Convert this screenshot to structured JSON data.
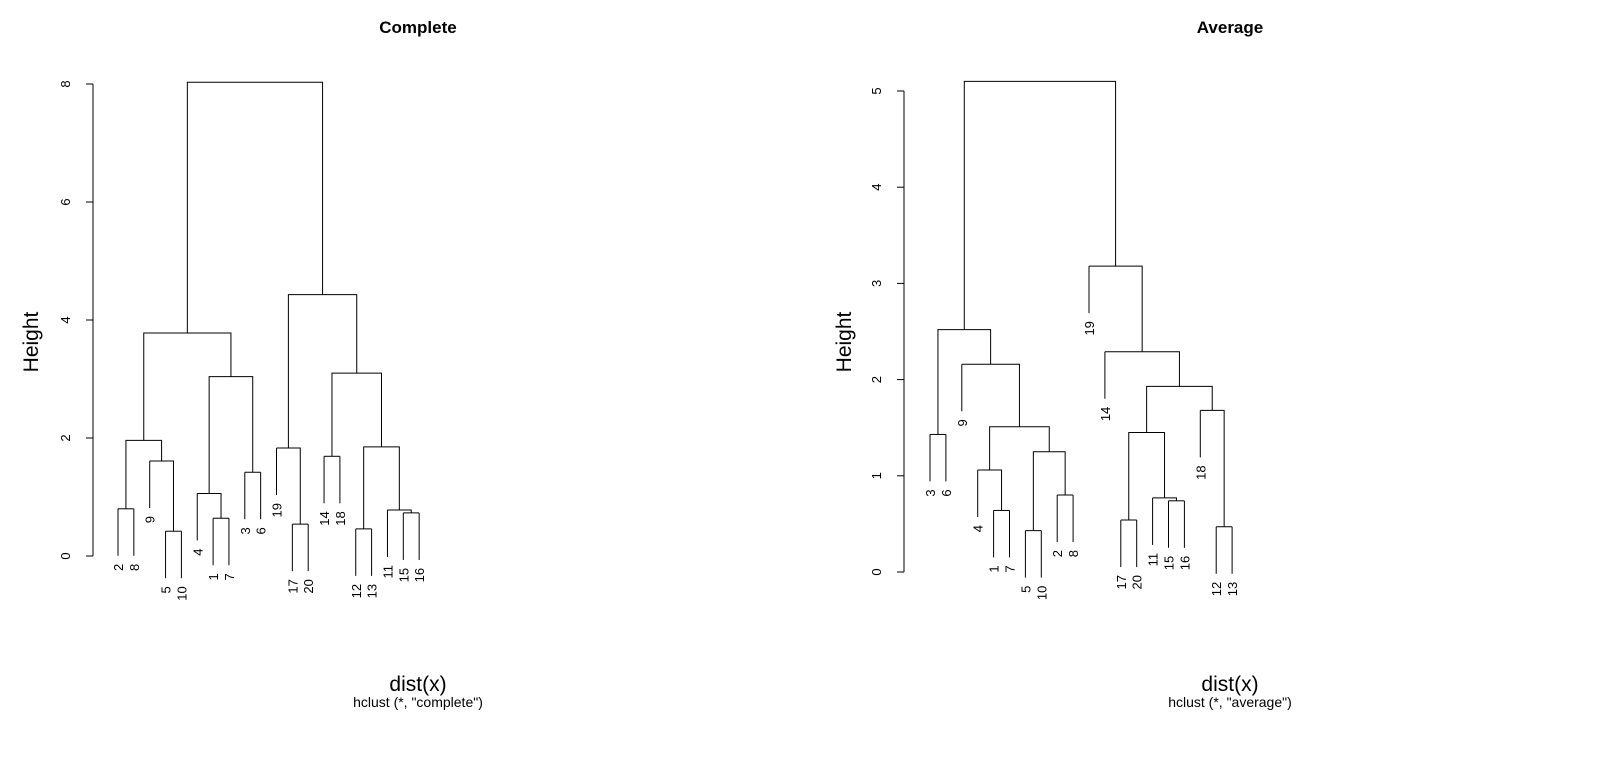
{
  "chart_data": [
    {
      "type": "dendrogram",
      "title": "Complete",
      "ylabel": "Height",
      "xlabel": "dist(x)",
      "sublabel": "hclust (*, \"complete\")",
      "ylim": [
        0,
        8
      ],
      "yticks": [
        0,
        2,
        4,
        6,
        8
      ],
      "grid": false,
      "leaf_order": [
        "2",
        "8",
        "9",
        "5",
        "10",
        "4",
        "1",
        "7",
        "3",
        "6",
        "19",
        "17",
        "20",
        "14",
        "18",
        "12",
        "13",
        "11",
        "15",
        "16"
      ],
      "leaf_heights": [
        0.8,
        0.8,
        1.61,
        0.42,
        0.42,
        1.06,
        0.64,
        0.64,
        1.42,
        1.42,
        1.83,
        0.54,
        0.54,
        1.69,
        1.69,
        0.46,
        0.46,
        0.78,
        0.73,
        0.73
      ],
      "merges": [
        [
          0,
          1,
          0.8
        ],
        [
          3,
          4,
          0.42
        ],
        [
          2,
          21,
          1.61
        ],
        [
          20,
          22,
          1.96
        ],
        [
          6,
          7,
          0.64
        ],
        [
          5,
          24,
          1.06
        ],
        [
          8,
          9,
          1.42
        ],
        [
          25,
          26,
          3.04
        ],
        [
          23,
          27,
          3.78
        ],
        [
          11,
          12,
          0.54
        ],
        [
          10,
          29,
          1.83
        ],
        [
          13,
          14,
          1.69
        ],
        [
          15,
          16,
          0.46
        ],
        [
          18,
          19,
          0.73
        ],
        [
          17,
          33,
          0.78
        ],
        [
          32,
          34,
          1.85
        ],
        [
          31,
          35,
          3.1
        ],
        [
          30,
          36,
          4.43
        ],
        [
          28,
          37,
          8.03
        ]
      ]
    },
    {
      "type": "dendrogram",
      "title": "Average",
      "ylabel": "Height",
      "xlabel": "dist(x)",
      "sublabel": "hclust (*, \"average\")",
      "ylim": [
        0,
        5
      ],
      "yticks": [
        0,
        1,
        2,
        3,
        4,
        5
      ],
      "grid": false,
      "leaf_order": [
        "3",
        "6",
        "9",
        "4",
        "1",
        "7",
        "5",
        "10",
        "2",
        "8",
        "19",
        "14",
        "17",
        "20",
        "11",
        "15",
        "16",
        "18",
        "12",
        "13"
      ],
      "leaf_heights": [
        1.43,
        1.43,
        2.16,
        1.06,
        0.64,
        0.64,
        0.43,
        0.43,
        0.8,
        0.8,
        3.18,
        2.29,
        0.54,
        0.54,
        0.77,
        0.74,
        0.74,
        1.68,
        0.47,
        0.47
      ],
      "merges": [
        [
          0,
          1,
          1.43
        ],
        [
          4,
          5,
          0.64
        ],
        [
          3,
          21,
          1.06
        ],
        [
          6,
          7,
          0.43
        ],
        [
          8,
          9,
          0.8
        ],
        [
          23,
          24,
          1.25
        ],
        [
          22,
          25,
          1.51
        ],
        [
          2,
          26,
          2.16
        ],
        [
          20,
          27,
          2.52
        ],
        [
          12,
          13,
          0.54
        ],
        [
          15,
          16,
          0.74
        ],
        [
          14,
          30,
          0.77
        ],
        [
          29,
          31,
          1.45
        ],
        [
          18,
          19,
          0.47
        ],
        [
          17,
          33,
          1.68
        ],
        [
          32,
          34,
          1.93
        ],
        [
          11,
          35,
          2.29
        ],
        [
          10,
          36,
          3.18
        ],
        [
          28,
          37,
          5.1
        ]
      ]
    }
  ]
}
